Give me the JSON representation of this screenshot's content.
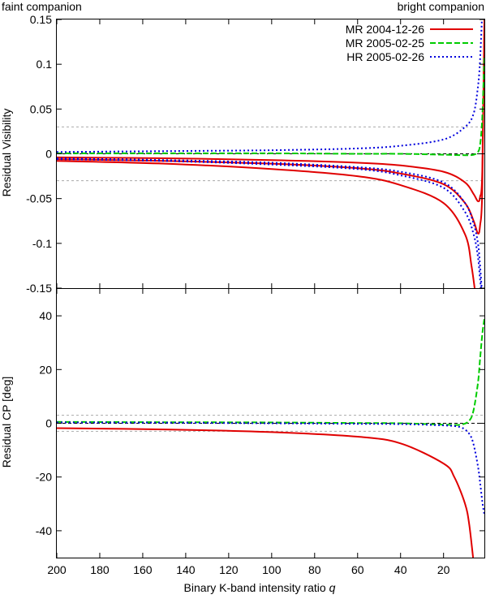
{
  "chart_data": [
    {
      "type": "line",
      "top_left_label": "faint companion",
      "top_right_label": "bright companion",
      "xlabel": "",
      "ylabel": "Residual Visibility",
      "xlim": [
        200,
        1
      ],
      "ylim": [
        -0.15,
        0.15
      ],
      "yticks": [
        "0.15",
        "0.1",
        "0.05",
        "0",
        "-0.05",
        "-0.1",
        "-0.15"
      ],
      "ytick_values": [
        0.15,
        0.1,
        0.05,
        0,
        -0.05,
        -0.1,
        -0.15
      ],
      "thresholds": [
        0.03,
        -0.03
      ],
      "grid": false,
      "legend_position": "top-right",
      "series": [
        {
          "name": "MR 2004-12-26",
          "color": "#e00000",
          "dash": "solid",
          "curves": [
            {
              "x": [
                200,
                150,
                100,
                60,
                40,
                20,
                10,
                6,
                4,
                3,
                2,
                1
              ],
              "y": [
                -0.004,
                -0.005,
                -0.007,
                -0.01,
                -0.013,
                -0.02,
                -0.032,
                -0.045,
                -0.053,
                -0.048,
                -0.02,
                0.15
              ]
            },
            {
              "x": [
                200,
                150,
                100,
                60,
                40,
                20,
                10,
                6,
                4,
                3,
                2,
                1
              ],
              "y": [
                -0.006,
                -0.008,
                -0.011,
                -0.016,
                -0.022,
                -0.034,
                -0.055,
                -0.075,
                -0.089,
                -0.08,
                -0.04,
                0.15
              ]
            },
            {
              "x": [
                200,
                150,
                100,
                60,
                40,
                20,
                10,
                7,
                5
              ],
              "y": [
                -0.008,
                -0.011,
                -0.017,
                -0.025,
                -0.035,
                -0.055,
                -0.09,
                -0.125,
                -0.16
              ]
            }
          ]
        },
        {
          "name": "MR 2005-02-25",
          "color": "#00cc00",
          "dash": "dashed",
          "curves": [
            {
              "x": [
                200,
                150,
                100,
                60,
                40,
                20,
                10,
                6,
                4,
                3,
                2,
                1
              ],
              "y": [
                0.0005,
                0.0005,
                0.0005,
                0.0,
                0.0,
                -0.001,
                -0.0015,
                -0.001,
                0.002,
                0.01,
                0.04,
                0.11
              ]
            }
          ]
        },
        {
          "name": "HR 2005-02-26",
          "color": "#0000dd",
          "dash": "dotted",
          "curves": [
            {
              "x": [
                200,
                150,
                100,
                60,
                40,
                20,
                10,
                6,
                4,
                3,
                2
              ],
              "y": [
                0.002,
                0.003,
                0.004,
                0.006,
                0.009,
                0.016,
                0.03,
                0.045,
                0.075,
                0.105,
                0.16
              ]
            },
            {
              "x": [
                200,
                150,
                100,
                60,
                40,
                20,
                10,
                6,
                4,
                3,
                2
              ],
              "y": [
                -0.005,
                -0.007,
                -0.01,
                -0.015,
                -0.02,
                -0.032,
                -0.055,
                -0.078,
                -0.1,
                -0.125,
                -0.16
              ]
            },
            {
              "x": [
                200,
                150,
                100,
                60,
                40,
                20,
                10,
                6,
                4,
                3,
                2
              ],
              "y": [
                -0.006,
                -0.008,
                -0.012,
                -0.017,
                -0.024,
                -0.038,
                -0.065,
                -0.09,
                -0.115,
                -0.14,
                -0.16
              ]
            }
          ]
        }
      ]
    },
    {
      "type": "line",
      "xlabel": "Binary K-band intensity ratio",
      "xlabel_symbol": "q",
      "ylabel": "Residual CP [deg]",
      "xlim": [
        200,
        1
      ],
      "ylim": [
        -50,
        50
      ],
      "xticks": [
        "200",
        "180",
        "160",
        "140",
        "120",
        "100",
        "80",
        "60",
        "40",
        "20"
      ],
      "xtick_values": [
        200,
        180,
        160,
        140,
        120,
        100,
        80,
        60,
        40,
        20
      ],
      "yticks": [
        "40",
        "20",
        "0",
        "-20",
        "-40"
      ],
      "ytick_values": [
        40,
        20,
        0,
        -20,
        -40
      ],
      "thresholds": [
        3,
        -3
      ],
      "grid": false,
      "series": [
        {
          "name": "MR 2004-12-26",
          "color": "#e00000",
          "dash": "solid",
          "curves": [
            {
              "x": [
                200,
                150,
                100,
                60,
                40,
                20,
                15,
                10,
                8,
                6
              ],
              "y": [
                -1.8,
                -2.3,
                -3.3,
                -5,
                -7.5,
                -15,
                -20,
                -30,
                -38,
                -52
              ]
            }
          ]
        },
        {
          "name": "MR 2005-02-25",
          "color": "#00cc00",
          "dash": "dashed",
          "curves": [
            {
              "x": [
                200,
                150,
                100,
                60,
                40,
                20,
                12,
                8,
                6,
                4,
                3,
                2,
                1
              ],
              "y": [
                0.5,
                0.4,
                0.3,
                0.1,
                0,
                -0.5,
                -0.5,
                1,
                5,
                15,
                24,
                33,
                39
              ]
            }
          ]
        },
        {
          "name": "HR 2005-02-26",
          "color": "#0000dd",
          "dash": "dotted",
          "curves": [
            {
              "x": [
                200,
                150,
                100,
                60,
                40,
                20,
                12,
                8,
                6,
                4,
                3,
                2,
                1
              ],
              "y": [
                0.3,
                0.2,
                0,
                -0.2,
                -0.3,
                -0.8,
                -1.5,
                -4,
                -8,
                -16,
                -22,
                -29,
                -34
              ]
            }
          ]
        }
      ]
    }
  ]
}
